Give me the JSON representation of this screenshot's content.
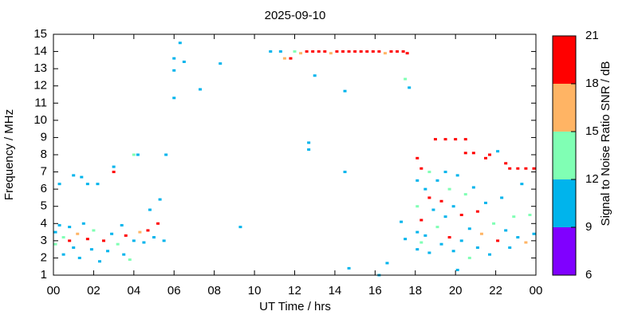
{
  "chart_data": {
    "type": "scatter",
    "title": "2025-09-10",
    "x_label": "UT Time / hrs",
    "y_label": "Frequency / MHz",
    "xlim": [
      0,
      24
    ],
    "xticks": [
      {
        "value": 0,
        "label": "00"
      },
      {
        "value": 2,
        "label": "02"
      },
      {
        "value": 4,
        "label": "04"
      },
      {
        "value": 6,
        "label": "06"
      },
      {
        "value": 8,
        "label": "08"
      },
      10,
      12,
      14,
      16,
      18,
      20,
      22,
      {
        "value": 24,
        "label": "00"
      }
    ],
    "ylim": [
      1,
      15
    ],
    "yticks": [
      1,
      2,
      3,
      4,
      5,
      6,
      7,
      8,
      9,
      10,
      11,
      12,
      13,
      14,
      15
    ],
    "x": [
      0.1,
      0.1,
      0.3,
      0.3,
      0.5,
      0.5,
      0.8,
      0.8,
      1.0,
      1.0,
      1.2,
      1.3,
      1.4,
      1.5,
      1.7,
      1.7,
      1.9,
      2.0,
      2.2,
      2.3,
      2.5,
      2.7,
      2.9,
      3.0,
      3.0,
      3.2,
      3.4,
      3.5,
      3.6,
      3.8,
      4.0,
      4.0,
      4.2,
      4.3,
      4.5,
      4.7,
      4.8,
      5.0,
      5.2,
      5.3,
      5.5,
      5.6,
      6.0,
      6.0,
      6.0,
      6.3,
      6.5,
      7.3,
      8.3,
      9.3,
      10.8,
      11.3,
      11.5,
      11.8,
      12.0,
      12.3,
      12.6,
      12.9,
      13.2,
      13.5,
      13.8,
      14.1,
      14.4,
      14.7,
      15.0,
      15.3,
      15.6,
      15.9,
      16.2,
      16.5,
      16.8,
      17.1,
      17.4,
      17.6,
      12.7,
      12.7,
      13.0,
      14.5,
      14.5,
      14.7,
      16.2,
      16.6,
      17.3,
      17.5,
      17.7,
      17.5,
      18.1,
      18.1,
      18.1,
      18.1,
      18.1,
      18.3,
      18.3,
      18.3,
      18.5,
      18.5,
      18.7,
      18.7,
      18.7,
      18.9,
      19.0,
      19.1,
      19.1,
      19.3,
      19.3,
      19.5,
      19.5,
      19.5,
      19.7,
      19.7,
      19.9,
      19.9,
      20.0,
      20.1,
      20.1,
      20.3,
      20.3,
      20.5,
      20.5,
      20.5,
      20.7,
      20.7,
      20.9,
      20.9,
      21.1,
      21.1,
      21.3,
      21.5,
      21.5,
      21.7,
      21.7,
      21.9,
      22.1,
      22.1,
      22.3,
      22.5,
      22.5,
      22.7,
      22.7,
      22.9,
      23.1,
      23.1,
      23.3,
      23.5,
      23.5,
      23.7,
      23.9,
      23.9
    ],
    "values": [
      3.5,
      2.8,
      3.9,
      6.3,
      3.2,
      2.2,
      3.0,
      3.8,
      6.8,
      2.6,
      3.4,
      2.0,
      6.7,
      4.0,
      3.1,
      6.3,
      2.5,
      3.6,
      6.3,
      1.8,
      3.0,
      2.4,
      3.4,
      7.0,
      7.3,
      2.8,
      3.9,
      2.2,
      3.3,
      1.9,
      3.0,
      8.0,
      8.0,
      3.5,
      2.9,
      3.6,
      4.8,
      3.2,
      4.0,
      5.4,
      3.0,
      8.0,
      11.3,
      13.6,
      12.9,
      14.5,
      13.4,
      11.8,
      13.3,
      3.8,
      14.0,
      14.0,
      13.6,
      13.6,
      14.0,
      13.9,
      14.0,
      14.0,
      14.0,
      14.0,
      13.9,
      14.0,
      14.0,
      14.0,
      14.0,
      14.0,
      14.0,
      14.0,
      14.0,
      13.9,
      14.0,
      14.0,
      14.0,
      13.9,
      8.7,
      8.3,
      12.6,
      11.7,
      7.0,
      1.4,
      1.0,
      1.7,
      4.1,
      12.4,
      11.9,
      3.1,
      7.8,
      6.5,
      5.0,
      3.5,
      2.5,
      7.2,
      4.2,
      2.9,
      6.0,
      3.3,
      7.0,
      5.5,
      2.3,
      4.8,
      8.9,
      6.5,
      3.8,
      5.3,
      2.8,
      8.9,
      7.0,
      4.4,
      6.0,
      3.2,
      5.0,
      2.4,
      8.9,
      6.8,
      1.3,
      4.5,
      3.0,
      8.9,
      8.1,
      5.7,
      3.7,
      2.0,
      8.1,
      6.1,
      4.7,
      2.6,
      3.4,
      7.8,
      5.2,
      8.0,
      2.2,
      4.0,
      8.2,
      3.0,
      5.5,
      7.5,
      3.6,
      7.2,
      2.6,
      4.4,
      7.2,
      3.2,
      6.3,
      7.2,
      2.9,
      4.5,
      7.2,
      3.4
    ],
    "snr": [
      10,
      13,
      10,
      10,
      13,
      10,
      19,
      10,
      10,
      10,
      16,
      10,
      10,
      10,
      19,
      10,
      10,
      13,
      10,
      10,
      19,
      10,
      10,
      19,
      10,
      13,
      10,
      10,
      19,
      13,
      10,
      13,
      10,
      16,
      10,
      19,
      10,
      10,
      19,
      10,
      10,
      10,
      10,
      10,
      10,
      10,
      10,
      10,
      10,
      10,
      10,
      10,
      16,
      19,
      13,
      16,
      19,
      19,
      19,
      19,
      16,
      19,
      19,
      19,
      19,
      19,
      19,
      19,
      19,
      16,
      19,
      19,
      19,
      19,
      10,
      10,
      10,
      10,
      10,
      10,
      10,
      10,
      10,
      13,
      10,
      10,
      19,
      10,
      13,
      10,
      10,
      19,
      19,
      13,
      10,
      10,
      13,
      19,
      10,
      10,
      19,
      10,
      13,
      19,
      10,
      19,
      10,
      10,
      13,
      19,
      10,
      10,
      19,
      10,
      10,
      19,
      10,
      19,
      19,
      13,
      10,
      13,
      19,
      10,
      19,
      10,
      16,
      19,
      10,
      19,
      10,
      13,
      10,
      19,
      10,
      19,
      10,
      19,
      10,
      13,
      19,
      10,
      10,
      19,
      16,
      13,
      19,
      10
    ],
    "colorbar": {
      "label": "Signal to Noise Ratio SNR / dB",
      "lim": [
        6,
        21
      ],
      "ticks": [
        6,
        9,
        12,
        15,
        18,
        21
      ],
      "colors": [
        "#8000ff",
        "#00b4ec",
        "#80ffb4",
        "#ffb464",
        "#ff0000"
      ]
    }
  }
}
